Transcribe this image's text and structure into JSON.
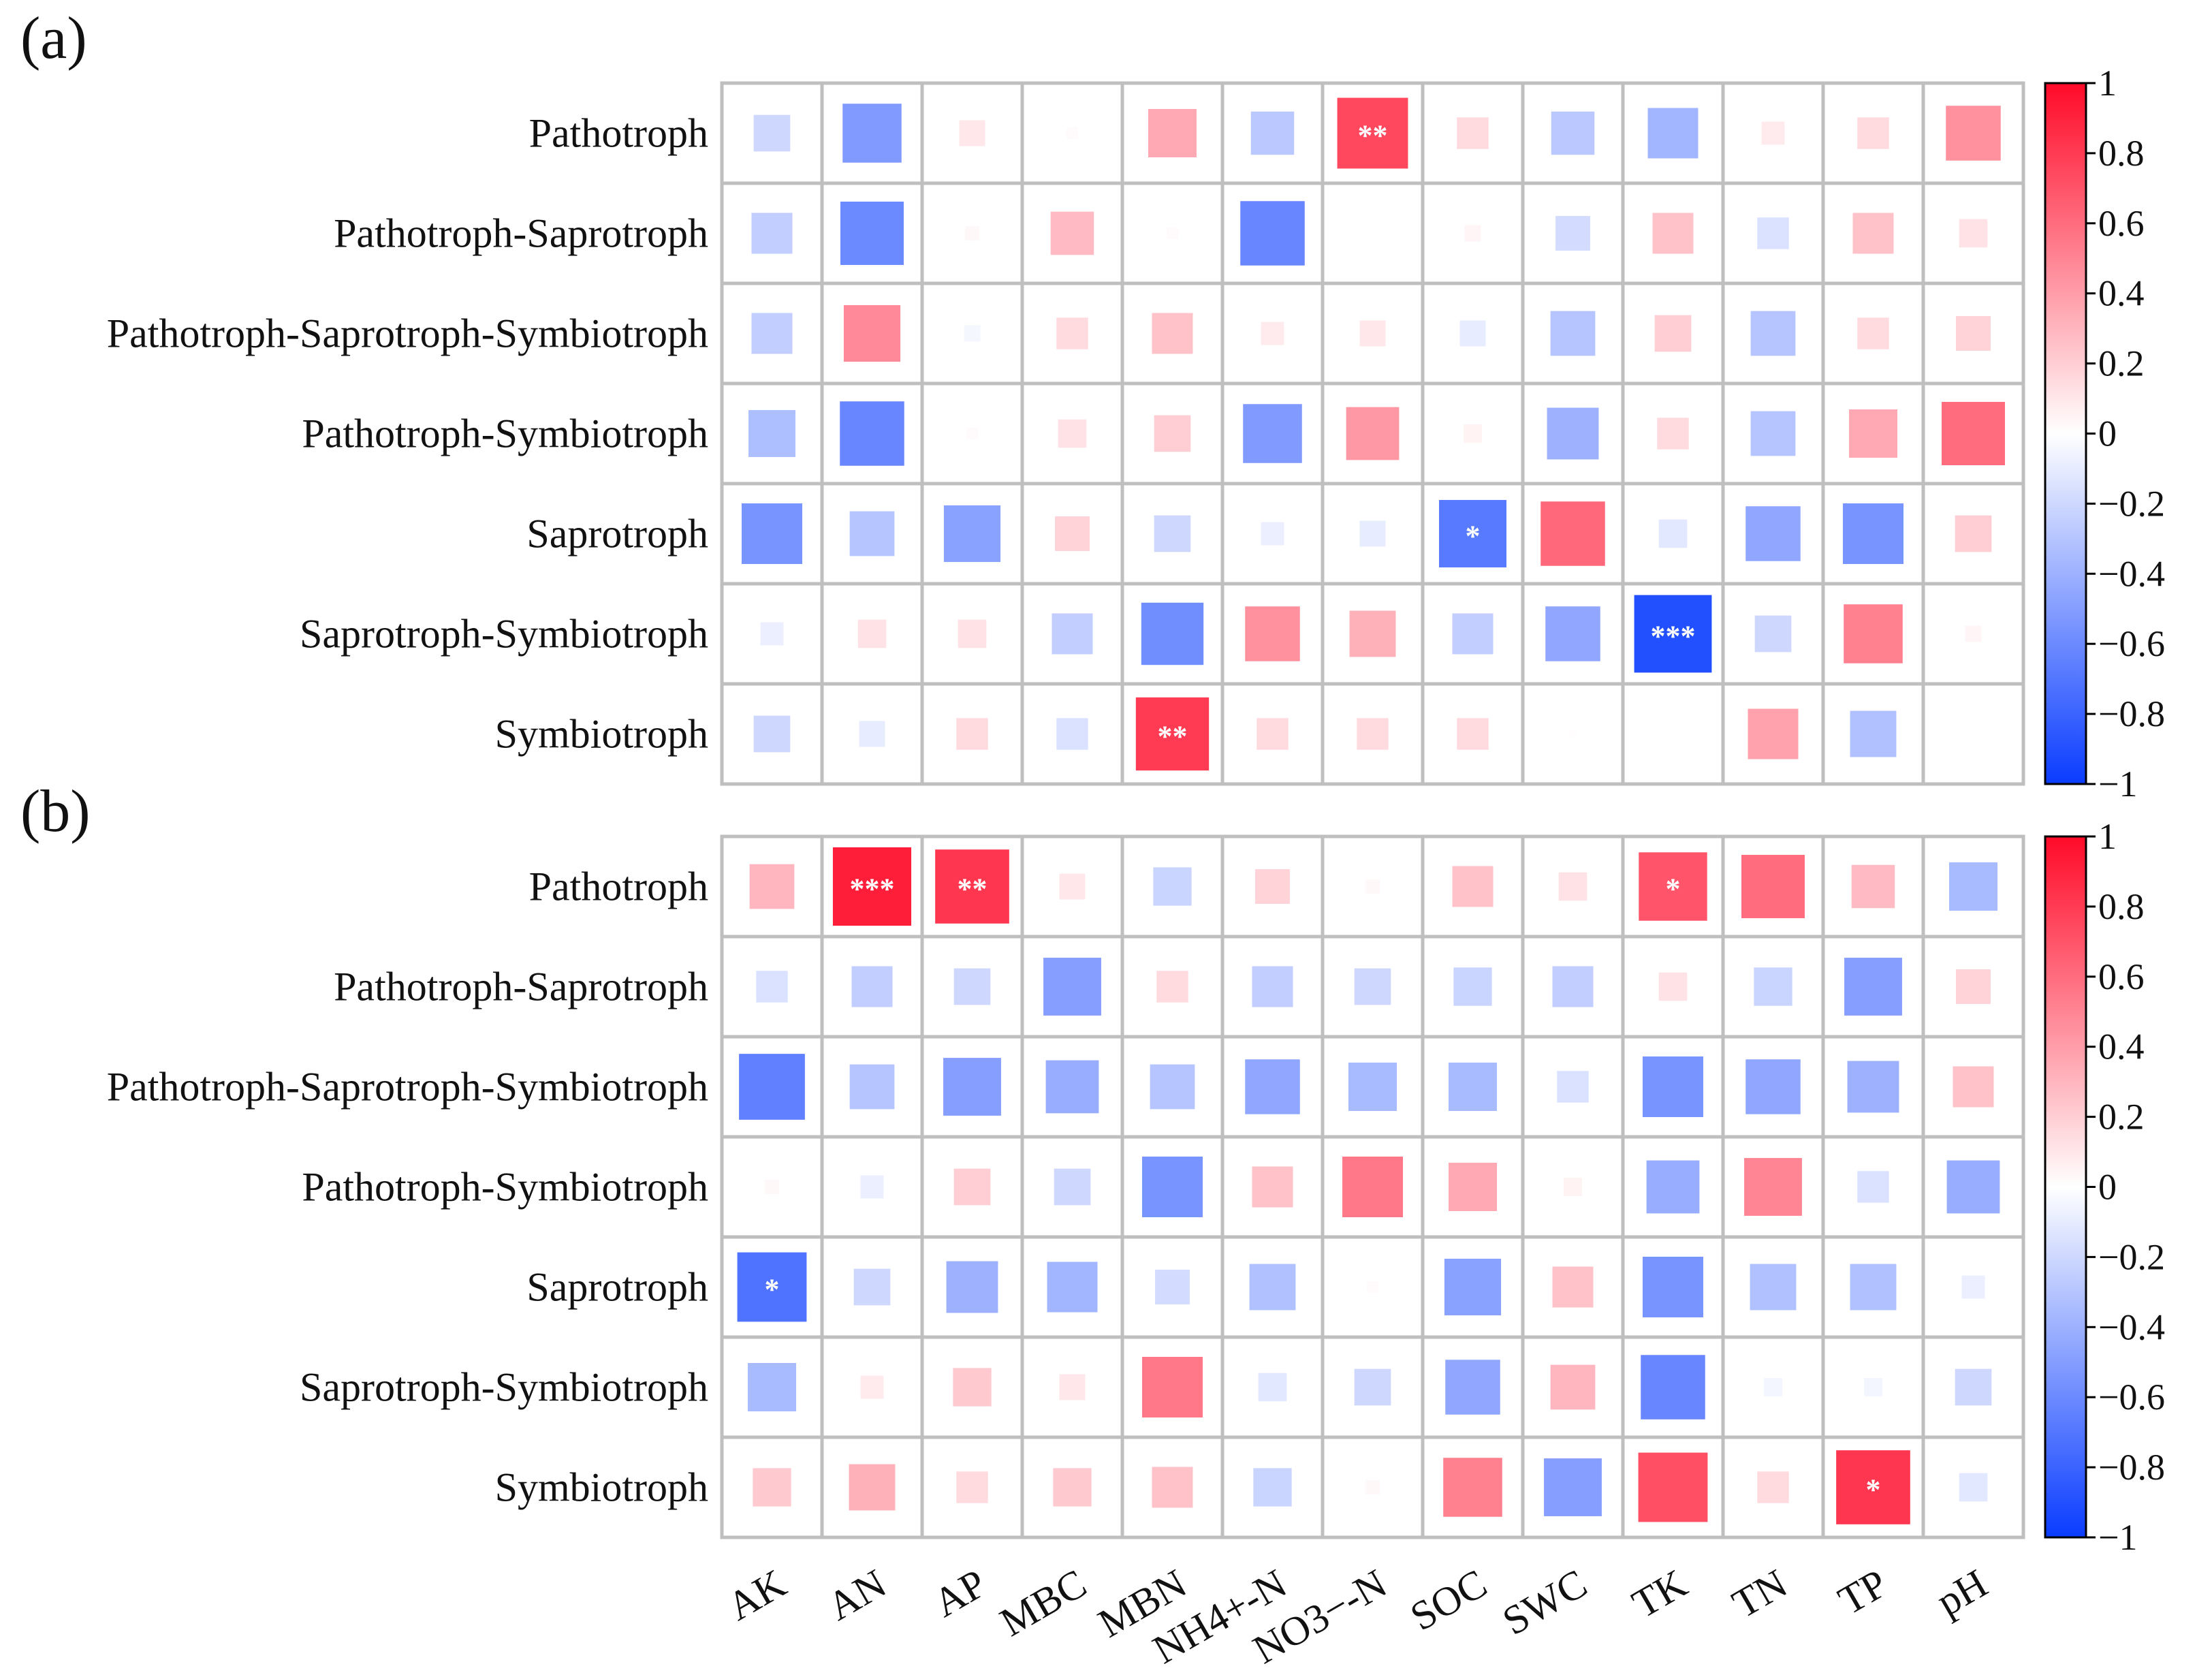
{
  "chart_data": {
    "type": "heatmap",
    "title": "",
    "rows": [
      "Pathotroph",
      "Pathotroph-Saprotroph",
      "Pathotroph-Saprotroph-Symbiotroph",
      "Pathotroph-Symbiotroph",
      "Saprotroph",
      "Saprotroph-Symbiotroph",
      "Symbiotroph"
    ],
    "columns": [
      "AK",
      "AN",
      "AP",
      "MBC",
      "MBN",
      "NH4+-N",
      "NO3−-N",
      "SOC",
      "SWC",
      "TK",
      "TN",
      "TP",
      "pH"
    ],
    "color_scale": {
      "min": -1,
      "max": 1,
      "ticks": [
        "1",
        "0.8",
        "0.6",
        "0.4",
        "0.2",
        "0",
        "−0.2",
        "−0.4",
        "−0.6",
        "−0.8",
        "−1"
      ],
      "negative_color": "#0a3cff",
      "zero_color": "#ffffff",
      "positive_color": "#ff0a28"
    },
    "panels": [
      {
        "label": "(a)",
        "values": [
          [
            -0.2,
            -0.52,
            0.1,
            0.02,
            0.35,
            -0.28,
            0.75,
            0.15,
            -0.28,
            -0.38,
            0.08,
            0.15,
            0.45
          ],
          [
            -0.25,
            -0.6,
            0.03,
            0.28,
            0.02,
            -0.62,
            0.0,
            0.04,
            -0.18,
            0.25,
            -0.15,
            0.25,
            0.12
          ],
          [
            -0.25,
            0.48,
            -0.04,
            0.15,
            0.25,
            0.08,
            0.1,
            -0.1,
            -0.3,
            0.2,
            -0.3,
            0.15,
            0.18
          ],
          [
            -0.33,
            -0.62,
            0.02,
            0.12,
            0.2,
            -0.52,
            0.42,
            0.05,
            -0.4,
            0.15,
            -0.3,
            0.35,
            0.6
          ],
          [
            -0.55,
            -0.3,
            -0.48,
            0.18,
            -0.2,
            -0.08,
            -0.1,
            -0.68,
            0.62,
            -0.12,
            -0.45,
            -0.55,
            0.2
          ],
          [
            -0.08,
            0.12,
            0.12,
            -0.25,
            -0.58,
            0.45,
            0.32,
            -0.25,
            -0.45,
            -0.9,
            -0.2,
            0.52,
            0.04
          ],
          [
            -0.2,
            -0.1,
            0.15,
            -0.15,
            0.8,
            0.15,
            0.15,
            0.15,
            0.01,
            0.0,
            0.38,
            -0.32,
            0.0
          ]
        ],
        "significance": [
          [
            "",
            "",
            "",
            "",
            "",
            "",
            "**",
            "",
            "",
            "",
            "",
            "",
            ""
          ],
          [
            "",
            "",
            "",
            "",
            "",
            "",
            "",
            "",
            "",
            "",
            "",
            "",
            ""
          ],
          [
            "",
            "",
            "",
            "",
            "",
            "",
            "",
            "",
            "",
            "",
            "",
            "",
            ""
          ],
          [
            "",
            "",
            "",
            "",
            "",
            "",
            "",
            "",
            "",
            "",
            "",
            "",
            ""
          ],
          [
            "",
            "",
            "",
            "",
            "",
            "",
            "",
            "*",
            "",
            "",
            "",
            "",
            ""
          ],
          [
            "",
            "",
            "",
            "",
            "",
            "",
            "",
            "",
            "",
            "***",
            "",
            "",
            ""
          ],
          [
            "",
            "",
            "",
            "",
            "**",
            "",
            "",
            "",
            "",
            "",
            "",
            "",
            ""
          ]
        ]
      },
      {
        "label": "(b)",
        "values": [
          [
            0.3,
            0.92,
            0.82,
            0.1,
            -0.22,
            0.18,
            0.03,
            0.25,
            0.12,
            0.7,
            0.6,
            0.28,
            -0.35
          ],
          [
            -0.15,
            -0.25,
            -0.2,
            -0.5,
            0.15,
            -0.25,
            -0.2,
            -0.22,
            -0.25,
            0.12,
            -0.22,
            -0.5,
            0.18
          ],
          [
            -0.65,
            -0.3,
            -0.5,
            -0.42,
            -0.3,
            -0.45,
            -0.35,
            -0.35,
            -0.15,
            -0.55,
            -0.45,
            -0.4,
            0.25
          ],
          [
            0.03,
            -0.08,
            0.2,
            -0.2,
            -0.55,
            0.25,
            0.55,
            0.35,
            0.05,
            -0.42,
            0.5,
            -0.15,
            -0.42
          ],
          [
            -0.72,
            -0.2,
            -0.4,
            -0.38,
            -0.18,
            -0.32,
            0.02,
            -0.48,
            0.25,
            -0.55,
            -0.32,
            -0.32,
            -0.08
          ],
          [
            -0.35,
            0.08,
            0.22,
            0.1,
            0.55,
            -0.12,
            -0.2,
            -0.45,
            0.3,
            -0.62,
            -0.05,
            -0.05,
            -0.2
          ],
          [
            0.22,
            0.32,
            0.15,
            0.22,
            0.25,
            -0.22,
            0.03,
            0.52,
            -0.5,
            0.72,
            0.15,
            0.82,
            -0.12
          ]
        ],
        "significance": [
          [
            "",
            "***",
            "**",
            "",
            "",
            "",
            "",
            "",
            "",
            "*",
            "",
            "",
            ""
          ],
          [
            "",
            "",
            "",
            "",
            "",
            "",
            "",
            "",
            "",
            "",
            "",
            "",
            ""
          ],
          [
            "",
            "",
            "",
            "",
            "",
            "",
            "",
            "",
            "",
            "",
            "",
            "",
            ""
          ],
          [
            "",
            "",
            "",
            "",
            "",
            "",
            "",
            "",
            "",
            "",
            "",
            "",
            ""
          ],
          [
            "*",
            "",
            "",
            "",
            "",
            "",
            "",
            "",
            "",
            "",
            "",
            "",
            ""
          ],
          [
            "",
            "",
            "",
            "",
            "",
            "",
            "",
            "",
            "",
            "",
            "",
            "",
            ""
          ],
          [
            "",
            "",
            "",
            "",
            "",
            "",
            "",
            "",
            "",
            "",
            "",
            "*",
            ""
          ]
        ]
      }
    ]
  }
}
